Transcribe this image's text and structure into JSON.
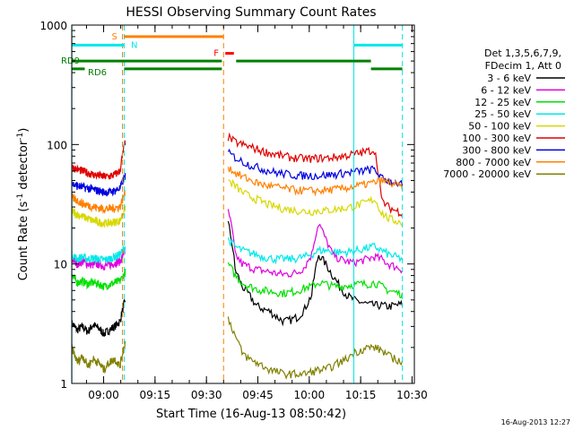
{
  "chart_data": {
    "type": "line",
    "title": "HESSI Observing Summary Count Rates",
    "xlabel": "Start Time (16-Aug-13 08:50:42)",
    "ylabel_main": "Count Rate (s",
    "ylabel_sup1": "-1",
    "ylabel_mid": " detector",
    "ylabel_sup2": "-1",
    "ylabel_end": ")",
    "yscale": "log",
    "ylim": [
      1,
      1000
    ],
    "xlim": [
      "08:50:42",
      "10:30:40"
    ],
    "x_ticks": [
      "09:00",
      "09:15",
      "09:30",
      "09:45",
      "10:00",
      "10:15",
      "10:30"
    ],
    "y_ticks": [
      "1",
      "10",
      "100",
      "1000"
    ],
    "legend_header": [
      "Det 1,3,5,6,7,9,",
      "FDecim 1, Att 0"
    ],
    "legend_placement": "right",
    "footer_date": "16-Aug-2013 12:27",
    "series": [
      {
        "name": "3 - 6 keV",
        "color": "#000000",
        "segments": [
          {
            "start": "08:50:42",
            "end": "09:06:20",
            "values": [
              3.2,
              2.8,
              3.0,
              2.7,
              3.1,
              2.9,
              2.6,
              2.8,
              3.0,
              3.3,
              5.0
            ]
          },
          {
            "start": "09:36:20",
            "end": "10:27:10",
            "values": [
              22,
              9,
              6.5,
              5.5,
              4.5,
              4.2,
              4.0,
              3.6,
              3.3,
              3.4,
              3.6,
              4.2,
              5.5,
              12,
              10,
              8,
              6.5,
              5.5,
              5,
              4.8,
              4.6,
              4.5,
              4.5,
              4.4,
              4.5,
              4.6
            ]
          }
        ]
      },
      {
        "name": "6 - 12 keV",
        "color": "#e000e0",
        "segments": [
          {
            "start": "08:50:42",
            "end": "09:06:20",
            "values": [
              11,
              10,
              10.5,
              10,
              9.8,
              10,
              9.6,
              9.8,
              10.2,
              10.5,
              13
            ]
          },
          {
            "start": "09:36:20",
            "end": "10:27:10",
            "values": [
              28,
              12,
              10,
              9.5,
              9,
              8.8,
              8.6,
              8.3,
              8.2,
              8.3,
              8.5,
              9.5,
              12,
              22,
              16,
              12,
              11,
              10.5,
              10.3,
              10.6,
              11,
              11.5,
              11,
              10,
              9.5,
              9
            ]
          }
        ]
      },
      {
        "name": "12 - 25 keV",
        "color": "#00e000",
        "segments": [
          {
            "start": "08:50:42",
            "end": "09:06:20",
            "values": [
              8,
              7,
              7.2,
              6.8,
              7,
              6.8,
              6.5,
              6.7,
              7,
              7.2,
              8.5
            ]
          },
          {
            "start": "09:36:20",
            "end": "10:27:10",
            "values": [
              10,
              8,
              7,
              6.5,
              6.2,
              6,
              5.9,
              5.8,
              5.7,
              5.8,
              6,
              6.3,
              6.5,
              7,
              6.8,
              6.5,
              6.5,
              6.6,
              6.7,
              6.8,
              6.8,
              7,
              6.5,
              6,
              5.8,
              5.6
            ]
          }
        ]
      },
      {
        "name": "25 - 50 keV",
        "color": "#00e8e8",
        "segments": [
          {
            "start": "08:50:42",
            "end": "09:06:20",
            "values": [
              12,
              11,
              11.5,
              11,
              11.2,
              11,
              10.8,
              11,
              11.5,
              12,
              14
            ]
          },
          {
            "start": "09:36:20",
            "end": "10:27:10",
            "values": [
              16,
              14,
              13,
              12.5,
              12,
              11.5,
              11.2,
              11,
              11,
              11,
              11.2,
              11.5,
              12,
              13,
              13,
              12.8,
              12.5,
              12.6,
              12.8,
              13.2,
              13.6,
              14,
              13,
              12,
              11.5,
              11
            ]
          }
        ]
      },
      {
        "name": "50 - 100 keV",
        "color": "#d8d800",
        "segments": [
          {
            "start": "08:50:42",
            "end": "09:06:20",
            "values": [
              28,
              26,
              25,
              24,
              23,
              22.5,
              22,
              22,
              22.5,
              23,
              30
            ]
          },
          {
            "start": "09:36:20",
            "end": "10:27:10",
            "values": [
              50,
              45,
              40,
              37,
              35,
              33,
              31,
              30,
              29,
              28.5,
              28,
              27.5,
              27.5,
              28,
              28,
              28.5,
              29,
              29.5,
              30.5,
              31.5,
              33,
              35,
              27,
              24,
              23,
              22
            ]
          }
        ]
      },
      {
        "name": "100 - 300 keV",
        "color": "#e00000",
        "segments": [
          {
            "start": "08:50:42",
            "end": "09:06:20",
            "values": [
              65,
              62,
              60,
              58,
              56,
              55,
              54,
              54,
              56,
              60,
              105
            ]
          },
          {
            "start": "09:36:20",
            "end": "10:27:10",
            "values": [
              115,
              105,
              100,
              96,
              92,
              88,
              85,
              82,
              80,
              78,
              77,
              76,
              76,
              77,
              77,
              78,
              79,
              81,
              83,
              85,
              88,
              90,
              34,
              30,
              28,
              27
            ]
          }
        ]
      },
      {
        "name": "300 - 800 keV",
        "color": "#0000e0",
        "segments": [
          {
            "start": "08:50:42",
            "end": "09:06:20",
            "values": [
              47,
              45,
              44,
              43,
              42,
              41,
              40,
              40,
              41,
              43,
              55
            ]
          },
          {
            "start": "09:36:20",
            "end": "10:27:10",
            "values": [
              85,
              78,
              72,
              68,
              65,
              62,
              60,
              58,
              57,
              56,
              55,
              55,
              55,
              55,
              55.5,
              56,
              57,
              58,
              59,
              60,
              61,
              62,
              52,
              50,
              48,
              46
            ]
          }
        ]
      },
      {
        "name": "800 - 7000 keV",
        "color": "#ff8000",
        "segments": [
          {
            "start": "08:50:42",
            "end": "09:06:20",
            "values": [
              36,
              34,
              32,
              31,
              30,
              29.5,
              29,
              29,
              29.5,
              30,
              40
            ]
          },
          {
            "start": "09:36:20",
            "end": "10:27:10",
            "values": [
              65,
              58,
              54,
              51,
              48,
              46,
              45,
              44,
              43,
              42,
              41.5,
              41,
              41,
              41,
              41.5,
              42,
              42.5,
              43.5,
              44.5,
              45.5,
              47,
              48,
              50,
              48,
              46,
              44
            ]
          }
        ]
      },
      {
        "name": "7000 - 20000 keV",
        "color": "#808000",
        "segments": [
          {
            "start": "08:50:42",
            "end": "09:06:20",
            "values": [
              2.0,
              1.5,
              1.7,
              1.4,
              1.6,
              1.5,
              1.3,
              1.5,
              1.6,
              1.4,
              2.2
            ]
          },
          {
            "start": "09:36:20",
            "end": "10:27:10",
            "values": [
              3.5,
              2.5,
              1.8,
              1.6,
              1.5,
              1.4,
              1.3,
              1.25,
              1.2,
              1.2,
              1.2,
              1.2,
              1.25,
              1.3,
              1.3,
              1.4,
              1.5,
              1.6,
              1.8,
              1.9,
              2.0,
              2.0,
              1.9,
              1.7,
              1.6,
              1.5
            ]
          }
        ]
      }
    ],
    "vertical_markers": [
      {
        "time": "09:05:30",
        "color": "#ff8000",
        "style": "dashed",
        "label": "S"
      },
      {
        "time": "09:35:00",
        "color": "#ff8000",
        "style": "dashed",
        "label": "F"
      },
      {
        "time": "08:50:45",
        "color": "#00e8e8",
        "style": "solid",
        "label": ""
      },
      {
        "time": "09:06:00",
        "color": "#00e8e8",
        "style": "dashed",
        "label": ""
      },
      {
        "time": "10:13:00",
        "color": "#00e8e8",
        "style": "solid",
        "label": ""
      },
      {
        "time": "10:27:10",
        "color": "#00e8e8",
        "style": "dashed",
        "label": ""
      }
    ],
    "flag_bars": [
      {
        "label": "S",
        "color": "#ff8000",
        "level": 800,
        "intervals": [
          [
            "09:06:00",
            "09:35:00"
          ]
        ]
      },
      {
        "label": "N",
        "color": "#00e8e8",
        "level": 680,
        "intervals": [
          [
            "08:50:42",
            "09:06:00"
          ],
          [
            "10:13:00",
            "10:27:10"
          ]
        ]
      },
      {
        "label": "F",
        "color": "#ff0000",
        "level": 580,
        "intervals": [
          [
            "09:35:30",
            "09:38:00"
          ]
        ]
      },
      {
        "label": "RD9",
        "color": "#008000",
        "level": 500,
        "intervals": [
          [
            "08:50:42",
            "09:34:30"
          ],
          [
            "09:38:40",
            "10:18:00"
          ]
        ]
      },
      {
        "label": "RD6",
        "color": "#008000",
        "level": 430,
        "intervals": [
          [
            "08:50:42",
            "08:54:30"
          ],
          [
            "09:06:00",
            "09:34:30"
          ],
          [
            "10:18:00",
            "10:27:10"
          ]
        ]
      }
    ]
  }
}
